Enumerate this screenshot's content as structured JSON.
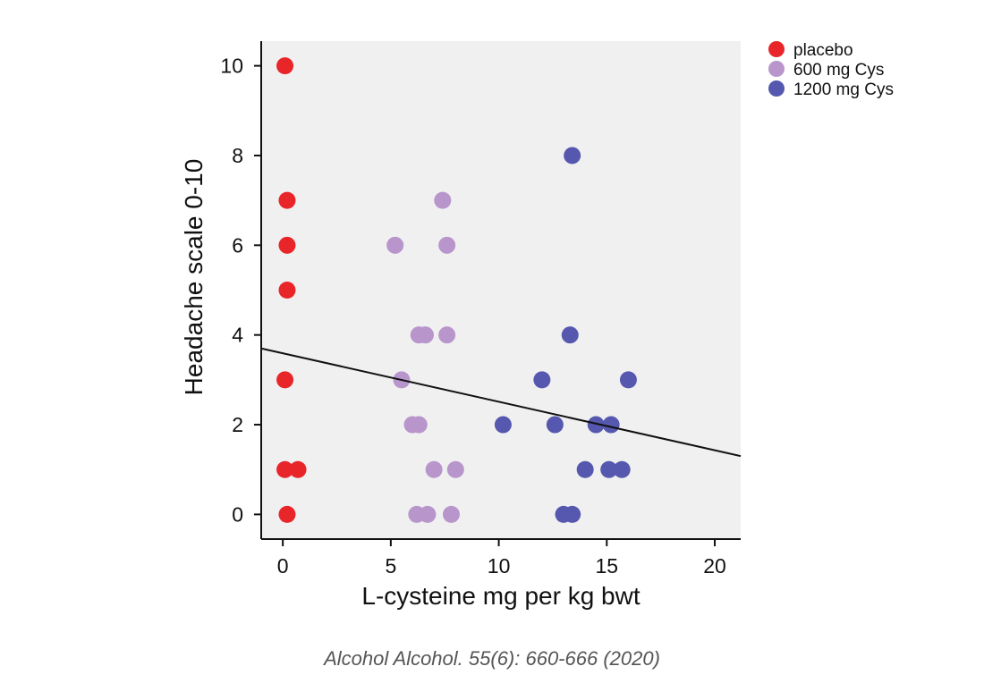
{
  "chart_data": {
    "type": "scatter",
    "title": "",
    "xlabel": "L-cysteine mg per kg bwt",
    "ylabel": "Headache scale 0-10",
    "xlim": [
      -1,
      21.2
    ],
    "ylim": [
      -0.55,
      10.55
    ],
    "x_ticks": [
      0,
      5,
      10,
      15,
      20
    ],
    "y_ticks": [
      0,
      2,
      4,
      6,
      8,
      10
    ],
    "grid": false,
    "background": "#f0f0f1",
    "legend_position": "top-right outside",
    "series": [
      {
        "name": "placebo",
        "color": "#e8262a",
        "points": [
          [
            0.1,
            10
          ],
          [
            0.2,
            7
          ],
          [
            0.2,
            6
          ],
          [
            0.2,
            5
          ],
          [
            0.1,
            3
          ],
          [
            0.1,
            1
          ],
          [
            0.7,
            1
          ],
          [
            0.2,
            0
          ]
        ]
      },
      {
        "name": "600 mg Cys",
        "color": "#b895cb",
        "points": [
          [
            7.4,
            7
          ],
          [
            5.2,
            6
          ],
          [
            7.6,
            6
          ],
          [
            6.3,
            4
          ],
          [
            6.6,
            4
          ],
          [
            7.6,
            4
          ],
          [
            5.5,
            3
          ],
          [
            6.0,
            2
          ],
          [
            6.3,
            2
          ],
          [
            7.0,
            1
          ],
          [
            8.0,
            1
          ],
          [
            6.2,
            0
          ],
          [
            6.7,
            0
          ],
          [
            7.8,
            0
          ]
        ]
      },
      {
        "name": "1200 mg Cys",
        "color": "#5558ae",
        "points": [
          [
            13.4,
            8
          ],
          [
            13.3,
            4
          ],
          [
            12.0,
            3
          ],
          [
            16.0,
            3
          ],
          [
            10.2,
            2
          ],
          [
            12.6,
            2
          ],
          [
            14.5,
            2
          ],
          [
            15.2,
            2
          ],
          [
            14.0,
            1
          ],
          [
            15.1,
            1
          ],
          [
            15.7,
            1
          ],
          [
            13.0,
            0
          ],
          [
            13.4,
            0
          ]
        ]
      }
    ],
    "regression_line": {
      "x": [
        -1,
        21.2
      ],
      "y": [
        3.7,
        1.3
      ],
      "color": "#111111"
    },
    "annotations": [
      "Alcohol Alcohol. 55(6): 660-666 (2020)"
    ]
  }
}
